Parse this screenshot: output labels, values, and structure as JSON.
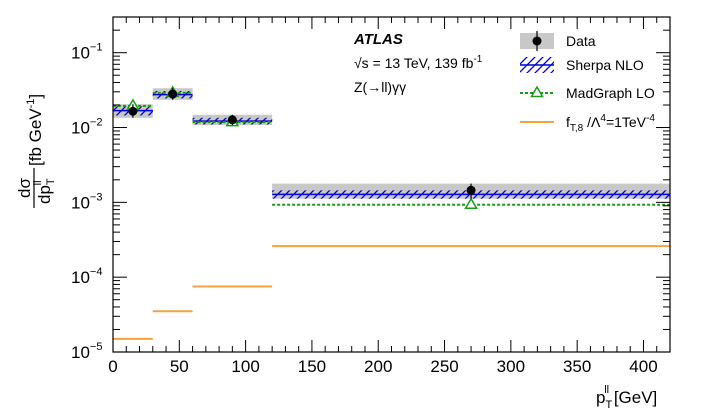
{
  "chart_data": {
    "type": "line",
    "yscale": "log",
    "xlim": [
      0,
      420
    ],
    "ylim": [
      1e-05,
      0.3
    ],
    "xticks": [
      0,
      50,
      100,
      150,
      200,
      250,
      300,
      350,
      400
    ],
    "xtick_labels": [
      "0",
      "50",
      "100",
      "150",
      "200",
      "250",
      "300",
      "350",
      "400"
    ],
    "yticks": [
      1e-05,
      0.0001,
      0.001,
      0.01,
      0.1
    ],
    "ytick_labels": [
      {
        "base": "10",
        "exp": "−5"
      },
      {
        "base": "10",
        "exp": "−4"
      },
      {
        "base": "10",
        "exp": "−3"
      },
      {
        "base": "10",
        "exp": "−2"
      },
      {
        "base": "10",
        "exp": "−1"
      }
    ],
    "xlabel": {
      "main": "p",
      "sub": "T",
      "sup": "ll",
      "unit": " [GeV]"
    },
    "ylabel": {
      "num": "dσ",
      "den_main": "dp",
      "den_sub": "T",
      "den_sup": "ll",
      "unit": " [fb GeV",
      "unit_exp": "-1",
      "unit_close": "]"
    },
    "bins": [
      [
        0,
        30
      ],
      [
        30,
        60
      ],
      [
        60,
        120
      ],
      [
        120,
        420
      ]
    ],
    "series": [
      {
        "name": "Data",
        "kind": "points",
        "x": [
          15,
          45,
          90,
          270
        ],
        "values": [
          0.0165,
          0.028,
          0.0127,
          0.00145
        ],
        "band_low": [
          0.0135,
          0.0235,
          0.0108,
          0.00112
        ],
        "band_high": [
          0.0205,
          0.0335,
          0.0148,
          0.00178
        ],
        "color": "#000000",
        "band_color": "#c8c8c8"
      },
      {
        "name": "Sherpa NLO",
        "kind": "step",
        "values": [
          0.0168,
          0.0275,
          0.0122,
          0.00128
        ],
        "band_low": [
          0.0145,
          0.0245,
          0.011,
          0.00112
        ],
        "band_high": [
          0.0192,
          0.0308,
          0.0135,
          0.00145
        ],
        "color": "#0000cc"
      },
      {
        "name": "MadGraph LO",
        "kind": "step-marker",
        "x": [
          15,
          45,
          90,
          270
        ],
        "values": [
          0.0195,
          0.029,
          0.0118,
          0.00093
        ],
        "color": "#1a9a1a"
      },
      {
        "name": "f_{T,8}/Λ^4=1TeV^-4",
        "kind": "step",
        "values": [
          1.5e-05,
          3.5e-05,
          7.5e-05,
          0.00026
        ],
        "color": "#f5a040"
      }
    ],
    "legend": {
      "placement": "top-right",
      "entries": [
        {
          "key": "data",
          "label": "Data"
        },
        {
          "key": "sherpa",
          "label": "Sherpa NLO"
        },
        {
          "key": "madgraph",
          "label": "MadGraph LO"
        },
        {
          "key": "eft",
          "label_main": "f",
          "label_sub": "T,8",
          "label_mid": " /Λ",
          "label_sup4": "4",
          "label_rest": "=1TeV",
          "label_sup": "-4"
        }
      ]
    },
    "annotations": {
      "experiment": "ATLAS",
      "energy": "√s = 13 TeV, 139 fb",
      "energy_exp": "-1",
      "process": "Z(→ll)γγ"
    }
  }
}
